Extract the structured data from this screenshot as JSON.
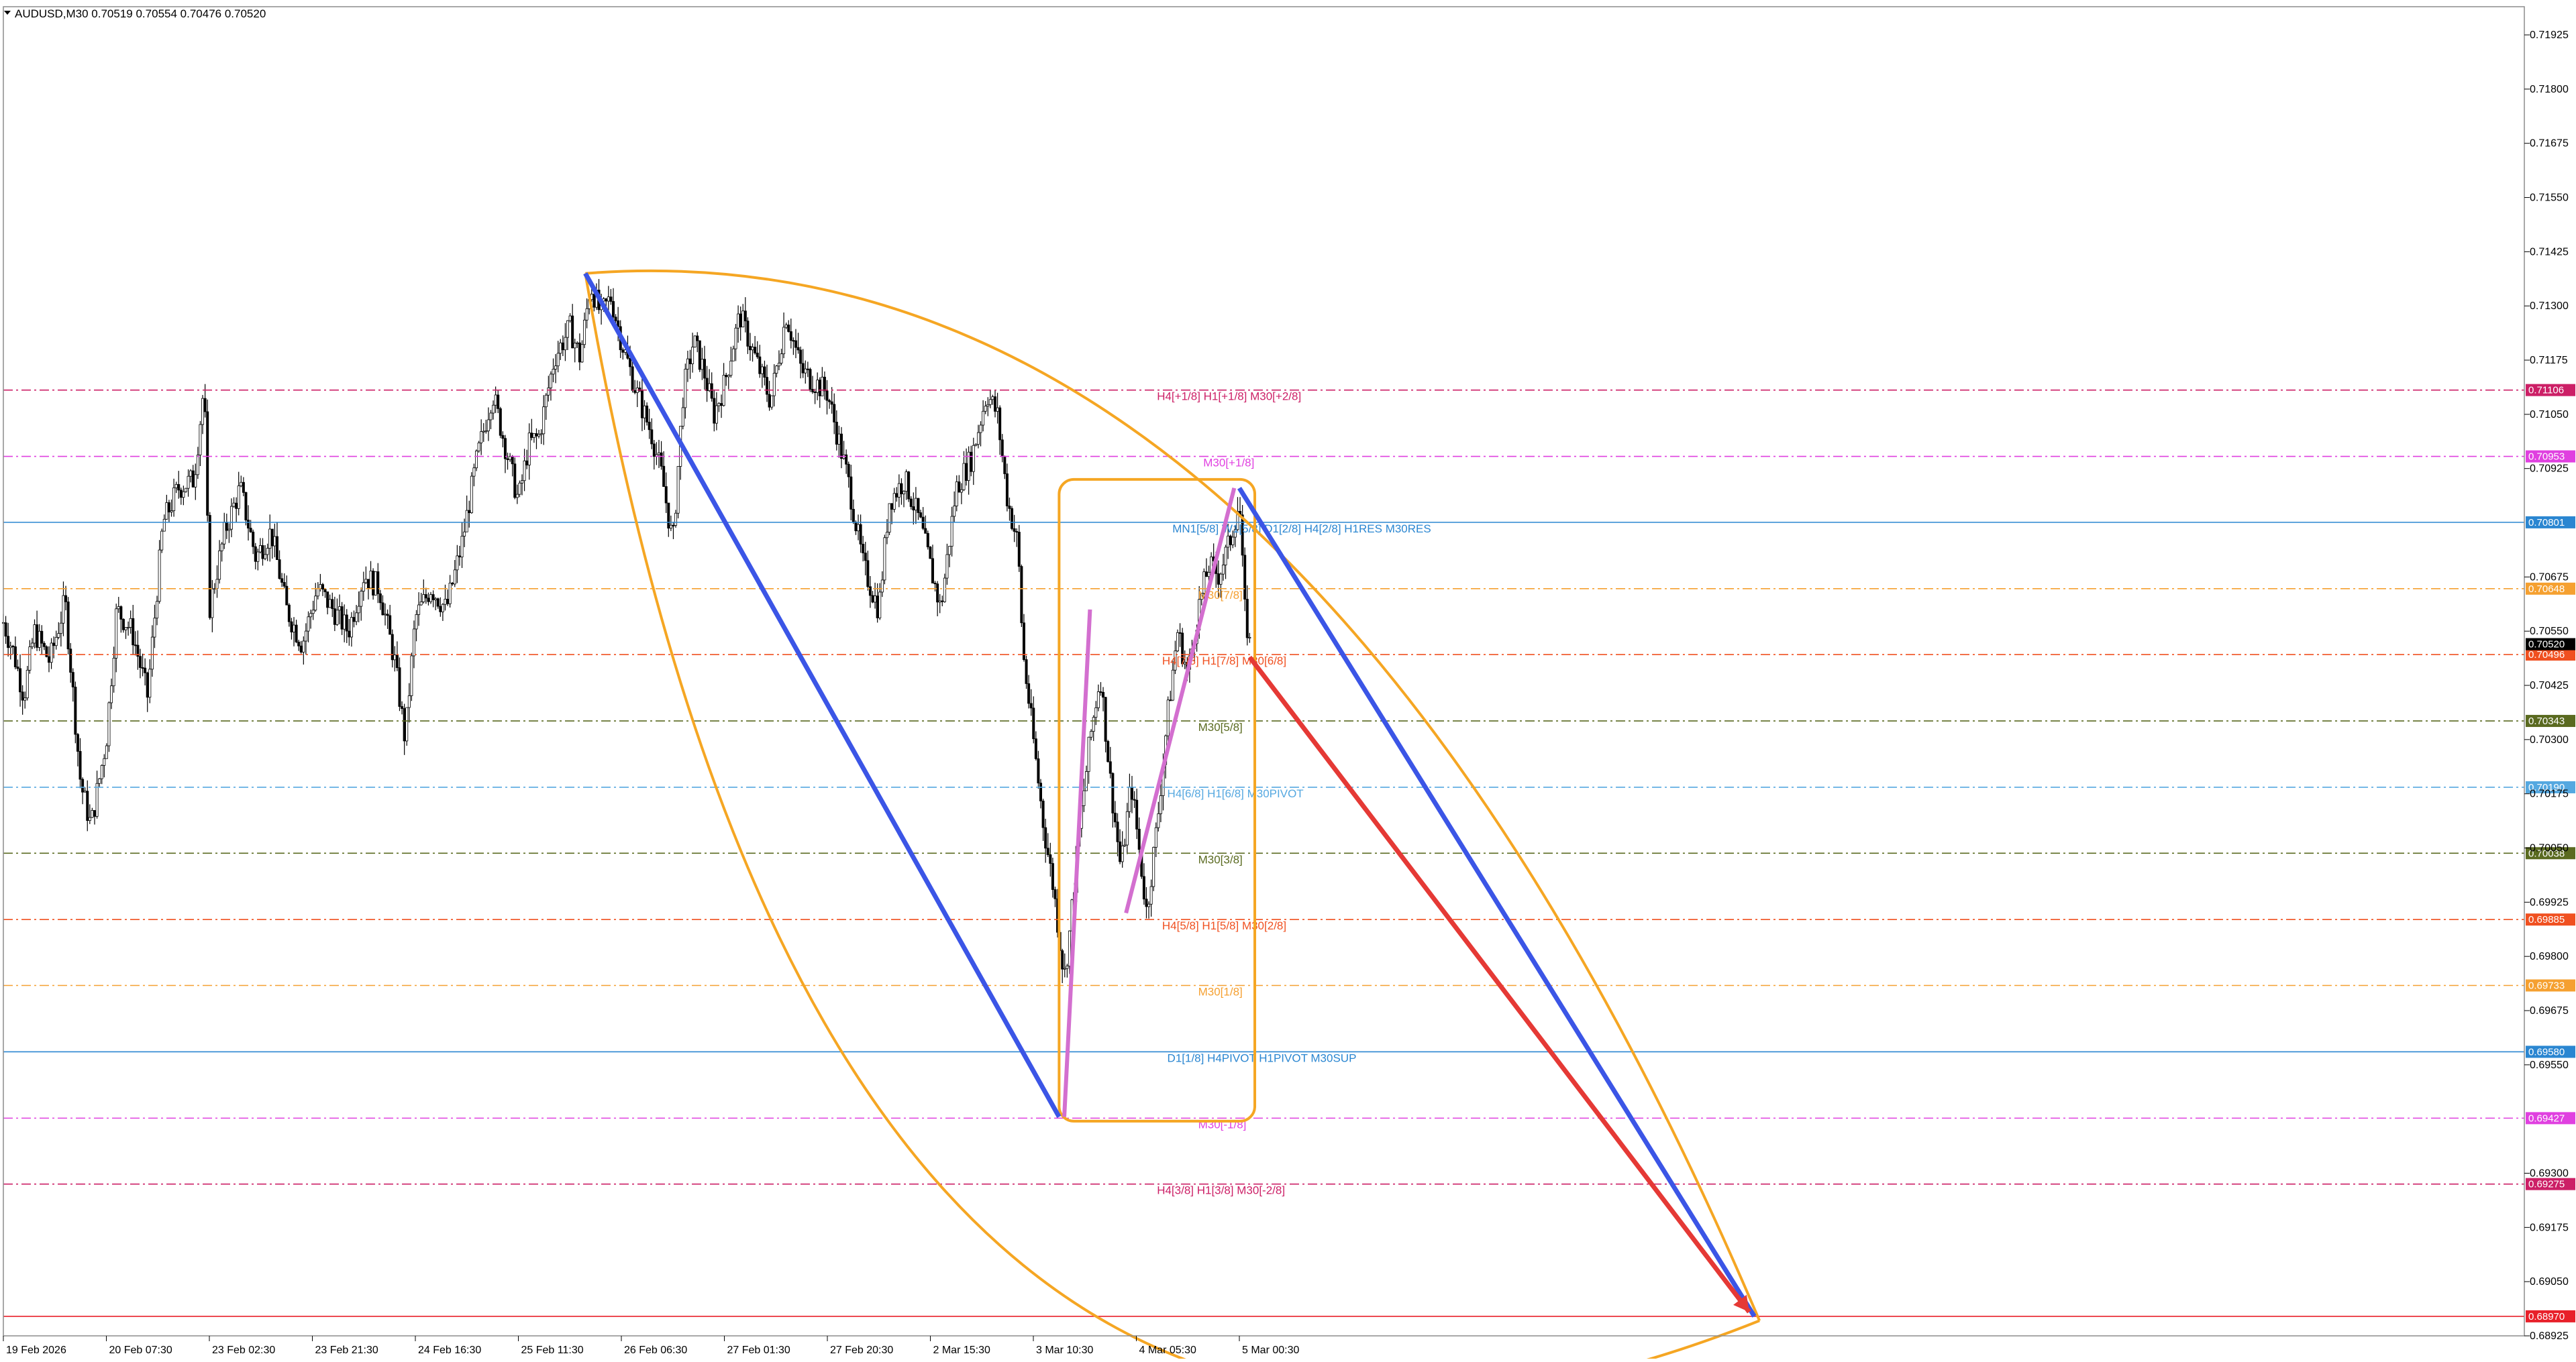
{
  "chart_data": {
    "type": "candlestick",
    "symbol_header": "AUDUSD,M30  0.70519 0.70554 0.70476 0.70520",
    "ylim": [
      0.68925,
      0.7199
    ],
    "price_ticks": [
      "0.71925",
      "0.71800",
      "0.71675",
      "0.71550",
      "0.71425",
      "0.71300",
      "0.71175",
      "0.71050",
      "0.70925",
      "0.70675",
      "0.70550",
      "0.70425",
      "0.70300",
      "0.70175",
      "0.70050",
      "0.69925",
      "0.69800",
      "0.69675",
      "0.69550",
      "0.69300",
      "0.69175",
      "0.69050",
      "0.68925"
    ],
    "time_ticks": [
      {
        "label": "19 Feb 2026",
        "x": 0
      },
      {
        "label": "20 Feb 07:30",
        "x": 1
      },
      {
        "label": "23 Feb 02:30",
        "x": 2
      },
      {
        "label": "23 Feb 21:30",
        "x": 3
      },
      {
        "label": "24 Feb 16:30",
        "x": 4
      },
      {
        "label": "25 Feb 11:30",
        "x": 5
      },
      {
        "label": "26 Feb 06:30",
        "x": 6
      },
      {
        "label": "27 Feb 01:30",
        "x": 7
      },
      {
        "label": "27 Feb 20:30",
        "x": 8
      },
      {
        "label": "2 Mar 15:30",
        "x": 9
      },
      {
        "label": "3 Mar 10:30",
        "x": 10
      },
      {
        "label": "4 Mar 05:30",
        "x": 11
      },
      {
        "label": "5 Mar 00:30",
        "x": 12
      }
    ],
    "close_path": [
      [
        0.0,
        0.7057
      ],
      [
        0.1,
        0.705
      ],
      [
        0.2,
        0.704
      ],
      [
        0.3,
        0.7055
      ],
      [
        0.45,
        0.7048
      ],
      [
        0.6,
        0.7062
      ],
      [
        0.75,
        0.702
      ],
      [
        0.85,
        0.701
      ],
      [
        1.0,
        0.703
      ],
      [
        1.1,
        0.706
      ],
      [
        1.25,
        0.7055
      ],
      [
        1.4,
        0.704
      ],
      [
        1.55,
        0.708
      ],
      [
        1.7,
        0.7088
      ],
      [
        1.85,
        0.709
      ],
      [
        1.95,
        0.7112
      ],
      [
        2.0,
        0.706
      ],
      [
        2.15,
        0.7078
      ],
      [
        2.3,
        0.7088
      ],
      [
        2.45,
        0.7072
      ],
      [
        2.6,
        0.7078
      ],
      [
        2.75,
        0.706
      ],
      [
        2.9,
        0.7052
      ],
      [
        3.05,
        0.7065
      ],
      [
        3.2,
        0.706
      ],
      [
        3.35,
        0.7055
      ],
      [
        3.5,
        0.7068
      ],
      [
        3.65,
        0.7065
      ],
      [
        3.8,
        0.7048
      ],
      [
        3.9,
        0.703
      ],
      [
        4.0,
        0.7058
      ],
      [
        4.15,
        0.7065
      ],
      [
        4.3,
        0.706
      ],
      [
        4.45,
        0.7075
      ],
      [
        4.6,
        0.7095
      ],
      [
        4.75,
        0.711
      ],
      [
        4.9,
        0.7095
      ],
      [
        5.0,
        0.7085
      ],
      [
        5.1,
        0.7098
      ],
      [
        5.2,
        0.71
      ],
      [
        5.35,
        0.7118
      ],
      [
        5.5,
        0.7125
      ],
      [
        5.6,
        0.7118
      ],
      [
        5.7,
        0.7135
      ],
      [
        5.8,
        0.7128
      ],
      [
        5.9,
        0.7132
      ],
      [
        6.0,
        0.7122
      ],
      [
        6.15,
        0.711
      ],
      [
        6.3,
        0.71
      ],
      [
        6.4,
        0.709
      ],
      [
        6.5,
        0.7075
      ],
      [
        6.6,
        0.711
      ],
      [
        6.7,
        0.7122
      ],
      [
        6.8,
        0.7115
      ],
      [
        6.9,
        0.7105
      ],
      [
        7.0,
        0.7112
      ],
      [
        7.15,
        0.7128
      ],
      [
        7.3,
        0.7118
      ],
      [
        7.45,
        0.7108
      ],
      [
        7.6,
        0.7128
      ],
      [
        7.75,
        0.7115
      ],
      [
        7.9,
        0.7112
      ],
      [
        8.0,
        0.711
      ],
      [
        8.2,
        0.709
      ],
      [
        8.35,
        0.707
      ],
      [
        8.5,
        0.706
      ],
      [
        8.6,
        0.7085
      ],
      [
        8.75,
        0.709
      ],
      [
        8.9,
        0.708
      ],
      [
        9.0,
        0.707
      ],
      [
        9.1,
        0.706
      ],
      [
        9.25,
        0.7088
      ],
      [
        9.4,
        0.7095
      ],
      [
        9.55,
        0.711
      ],
      [
        9.65,
        0.7105
      ],
      [
        9.75,
        0.7085
      ],
      [
        9.85,
        0.7075
      ],
      [
        9.9,
        0.705
      ],
      [
        10.0,
        0.703
      ],
      [
        10.1,
        0.701
      ],
      [
        10.2,
        0.6995
      ],
      [
        10.3,
        0.6975
      ],
      [
        10.35,
        0.6985
      ],
      [
        10.45,
        0.701
      ],
      [
        10.55,
        0.703
      ],
      [
        10.65,
        0.7045
      ],
      [
        10.75,
        0.702
      ],
      [
        10.85,
        0.7
      ],
      [
        10.95,
        0.702
      ],
      [
        11.05,
        0.7
      ],
      [
        11.1,
        0.699
      ],
      [
        11.2,
        0.701
      ],
      [
        11.3,
        0.7035
      ],
      [
        11.4,
        0.7055
      ],
      [
        11.5,
        0.7045
      ],
      [
        11.6,
        0.706
      ],
      [
        11.7,
        0.707
      ],
      [
        11.8,
        0.7068
      ],
      [
        11.9,
        0.7075
      ],
      [
        12.0,
        0.7085
      ],
      [
        12.05,
        0.706
      ],
      [
        12.1,
        0.7052
      ]
    ],
    "murrey_levels": [
      {
        "name": "H4[+1/8] H1[+1/8] M30[+2/8]",
        "price": 0.71106,
        "price_label": "0.71106",
        "color": "#cc1f66",
        "style": "dashdot",
        "label_x": 11.2
      },
      {
        "name": "M30[+1/8]",
        "price": 0.70953,
        "price_label": "0.70953",
        "color": "#e040e0",
        "style": "dashdot",
        "label_x": 11.65
      },
      {
        "name": "MN1[5/8] W1[5/8] D1[2/8] H4[2/8] H1RES M30RES",
        "price": 0.70801,
        "price_label": "0.70801",
        "color": "#2a86d1",
        "style": "solid",
        "label_x": 11.35
      },
      {
        "name": "M30[7/8]",
        "price": 0.70648,
        "price_label": "0.70648",
        "color": "#f5a030",
        "style": "dashdot",
        "label_x": 11.6
      },
      {
        "name": "H4[7/8] H1[7/8] M30[6/8]",
        "price": 0.70496,
        "price_label": "0.70496",
        "color": "#f05020",
        "style": "dashdot",
        "label_x": 11.25
      },
      {
        "name": "M30[5/8]",
        "price": 0.70343,
        "price_label": "0.70343",
        "color": "#5a6a20",
        "style": "dashdot",
        "label_x": 11.6
      },
      {
        "name": "H4[6/8] H1[6/8] M30PIVOT",
        "price": 0.7019,
        "price_label": "0.70190",
        "color": "#55a8e0",
        "style": "dashdot",
        "label_x": 11.3
      },
      {
        "name": "M30[3/8]",
        "price": 0.70038,
        "price_label": "0.70038",
        "color": "#5a6a20",
        "style": "dashdot",
        "label_x": 11.6
      },
      {
        "name": "H4[5/8] H1[5/8] M30[2/8]",
        "price": 0.69885,
        "price_label": "0.69885",
        "color": "#f05020",
        "style": "dashdot",
        "label_x": 11.25
      },
      {
        "name": "M30[1/8]",
        "price": 0.69733,
        "price_label": "0.69733",
        "color": "#f5a030",
        "style": "dashdot",
        "label_x": 11.6
      },
      {
        "name": "D1[1/8] H4PIVOT H1PIVOT M30SUP",
        "price": 0.6958,
        "price_label": "0.69580",
        "color": "#2a86d1",
        "style": "solid",
        "label_x": 11.3
      },
      {
        "name": "M30[-1/8]",
        "price": 0.69427,
        "price_label": "0.69427",
        "color": "#e040e0",
        "style": "dashdot",
        "label_x": 11.6
      },
      {
        "name": "H4[3/8] H1[3/8] M30[-2/8]",
        "price": 0.69275,
        "price_label": "0.69275",
        "color": "#cc1f66",
        "style": "dashdot",
        "label_x": 11.2
      },
      {
        "name": "",
        "price": 0.6897,
        "price_label": "0.68970",
        "color": "#e8202a",
        "style": "solid",
        "label_x": 11.6
      }
    ],
    "current_price": {
      "price": 0.7052,
      "label": "0.70520"
    },
    "overlays": {
      "blue_lines": [
        {
          "from": [
            5.65,
            0.71375
          ],
          "to": [
            10.25,
            0.6943
          ]
        },
        {
          "from": [
            12.0,
            0.7088
          ],
          "to": [
            17.0,
            0.6897
          ]
        }
      ],
      "red_arrow": {
        "from": [
          12.1,
          0.7049
        ],
        "to": [
          16.95,
          0.6898
        ]
      },
      "pink_lines": [
        {
          "from": [
            10.3,
            0.6943
          ],
          "to": [
            10.55,
            0.706
          ]
        },
        {
          "from": [
            10.9,
            0.699
          ],
          "to": [
            11.95,
            0.7088
          ]
        }
      ],
      "orange_box": {
        "x1": 10.25,
        "x2": 12.15,
        "y_top": 0.709,
        "y_bottom": 0.6942
      },
      "orange_arcs": [
        {
          "from": [
            5.65,
            0.71375
          ],
          "ctrl": [
            12.5,
            0.715
          ],
          "to": [
            17.05,
            0.6896
          ]
        },
        {
          "from": [
            5.65,
            0.71375
          ],
          "ctrl": [
            8.0,
            0.681
          ],
          "to": [
            17.05,
            0.6896
          ]
        }
      ]
    }
  }
}
